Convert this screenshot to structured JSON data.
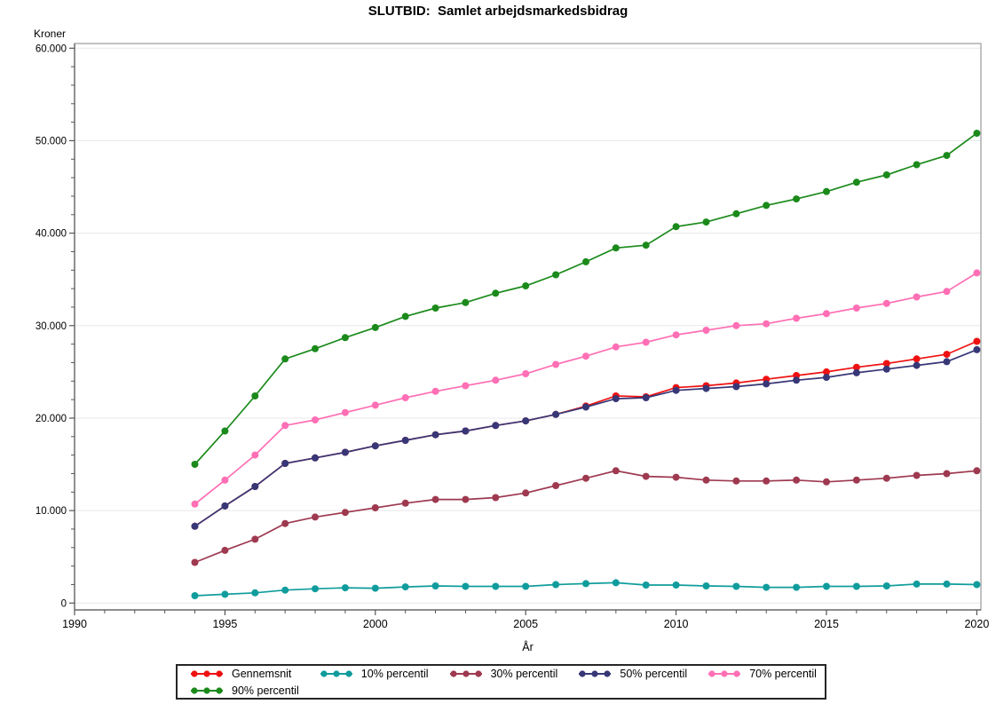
{
  "chart_data": {
    "type": "line",
    "title": "SLUTBID:  Samlet arbejdsmarkedsbidrag",
    "xlabel": "År",
    "ylabel": "Kroner",
    "grid": "horizontal-major",
    "legend_position": "bottom",
    "x_axis": {
      "min": 1990,
      "max": 2020,
      "major_step": 5,
      "minor_step": 1,
      "tick_labels": [
        "1990",
        "1995",
        "2000",
        "2005",
        "2010",
        "2015",
        "2020"
      ]
    },
    "y_axis": {
      "min": 0,
      "max": 60000,
      "major_step": 10000,
      "minor_step": 2000,
      "tick_labels": [
        "0",
        "10.000",
        "20.000",
        "30.000",
        "40.000",
        "50.000",
        "60.000"
      ]
    },
    "x": [
      1994,
      1995,
      1996,
      1997,
      1998,
      1999,
      2000,
      2001,
      2002,
      2003,
      2004,
      2005,
      2006,
      2007,
      2008,
      2009,
      2010,
      2011,
      2012,
      2013,
      2014,
      2015,
      2016,
      2017,
      2018,
      2019,
      2020
    ],
    "series": [
      {
        "name": "Gennemsnit",
        "color": "#ee1111",
        "values": [
          8300,
          10500,
          12600,
          15100,
          15700,
          16300,
          17000,
          17600,
          18200,
          18600,
          19200,
          19700,
          20400,
          21300,
          22400,
          22300,
          23300,
          23500,
          23800,
          24200,
          24600,
          25000,
          25500,
          25900,
          26400,
          26900,
          28300
        ]
      },
      {
        "name": "10% percentil",
        "color": "#109c9c",
        "values": [
          800,
          950,
          1100,
          1400,
          1550,
          1650,
          1600,
          1750,
          1850,
          1800,
          1800,
          1800,
          2000,
          2100,
          2200,
          1950,
          1950,
          1850,
          1800,
          1700,
          1700,
          1800,
          1800,
          1850,
          2050,
          2050,
          2000
        ]
      },
      {
        "name": "30% percentil",
        "color": "#9e3950",
        "values": [
          4400,
          5700,
          6900,
          8600,
          9300,
          9800,
          10300,
          10800,
          11200,
          11200,
          11400,
          11900,
          12700,
          13500,
          14300,
          13700,
          13600,
          13300,
          13200,
          13200,
          13300,
          13100,
          13300,
          13500,
          13800,
          14000,
          14300
        ]
      },
      {
        "name": "50% percentil",
        "color": "#373777",
        "values": [
          8300,
          10500,
          12600,
          15100,
          15700,
          16300,
          17000,
          17600,
          18200,
          18600,
          19200,
          19700,
          20400,
          21200,
          22100,
          22200,
          23000,
          23200,
          23400,
          23700,
          24100,
          24400,
          24900,
          25300,
          25700,
          26100,
          27400
        ]
      },
      {
        "name": "70% percentil",
        "color": "#ff6fb5",
        "values": [
          10700,
          13300,
          16000,
          19200,
          19800,
          20600,
          21400,
          22200,
          22900,
          23500,
          24100,
          24800,
          25800,
          26700,
          27700,
          28200,
          29000,
          29500,
          30000,
          30200,
          30800,
          31300,
          31900,
          32400,
          33100,
          33700,
          35700
        ]
      },
      {
        "name": "90% percentil",
        "color": "#1b8a1b",
        "values": [
          15000,
          18600,
          22400,
          26400,
          27500,
          28700,
          29800,
          31000,
          31900,
          32500,
          33500,
          34300,
          35500,
          36900,
          38400,
          38700,
          40700,
          41200,
          42100,
          43000,
          43700,
          44500,
          45500,
          46300,
          47400,
          48400,
          50800
        ]
      }
    ],
    "colors": {
      "grid": "#e8e8e8",
      "frame": "#9a9a9a",
      "axis": "#555555",
      "text": "#000000"
    }
  }
}
